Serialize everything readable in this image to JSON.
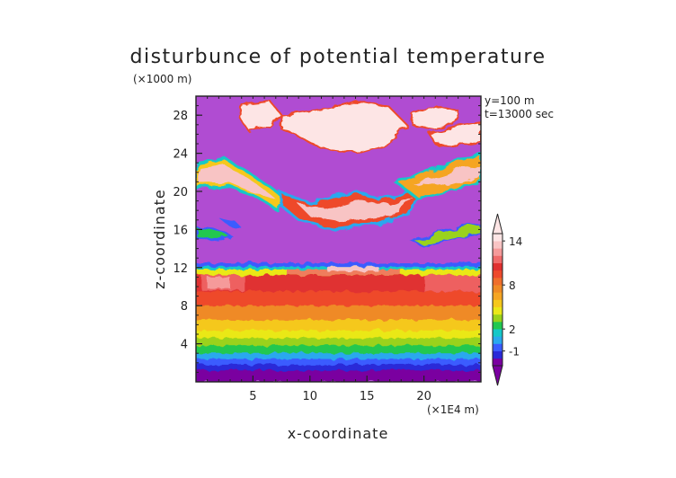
{
  "chart_data": {
    "type": "heatmap",
    "title": "disturbunce of potential temperature",
    "xlabel": "x-coordinate",
    "ylabel": "z-coordinate",
    "x_unit": "(×1E4 m)",
    "y_unit": "(×1000 m)",
    "annotations": [
      "y=100 m",
      "t=13000 sec"
    ],
    "xlim": [
      0,
      25
    ],
    "ylim": [
      0,
      30
    ],
    "x_ticks": [
      5,
      10,
      15,
      20
    ],
    "y_ticks": [
      4,
      8,
      12,
      16,
      20,
      24,
      28
    ],
    "colorbar": {
      "levels": [
        -2,
        -1,
        0,
        1,
        2,
        3,
        4,
        5,
        6,
        7,
        8,
        9,
        10,
        11,
        12,
        13,
        14,
        15
      ],
      "tick_values": [
        -1,
        2,
        8,
        14
      ],
      "colors": [
        "#7a00a0",
        "#2a2ad8",
        "#3a5cff",
        "#2aa8ee",
        "#14c8c8",
        "#22c850",
        "#9ad21a",
        "#eae818",
        "#f5c81c",
        "#f5a524",
        "#ef8a26",
        "#ef6e2c",
        "#ee4a2c",
        "#e03030",
        "#f06a6a",
        "#f59a9a",
        "#f8c4c4",
        "#fde5e5"
      ],
      "extend": "both"
    },
    "field_description_values": {
      "background": -2,
      "upper_blobs": 15,
      "lower_layer_max": 13
    }
  },
  "colors": {
    "background_purple": "#b04cd2",
    "frame": "#222222"
  }
}
